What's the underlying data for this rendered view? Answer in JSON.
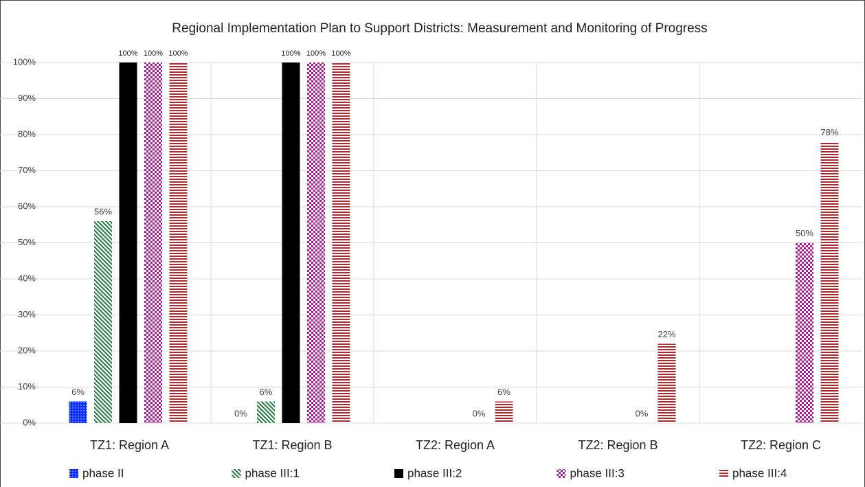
{
  "chart_data": {
    "type": "bar",
    "title": "Regional Implementation Plan to Support Districts: Measurement and Monitoring of Progress",
    "categories": [
      "TZ1: Region A",
      "TZ1: Region B",
      "TZ2: Region A",
      "TZ2: Region B",
      "TZ2: Region C"
    ],
    "series": [
      {
        "name": "phase II",
        "color": "#0a2cff",
        "pattern": "dots",
        "values": [
          6,
          0,
          null,
          null,
          null
        ],
        "value_labels": [
          "6%",
          "0%",
          null,
          null,
          null
        ]
      },
      {
        "name": "phase III:1",
        "color": "#1f7a3a",
        "pattern": "diagonal",
        "values": [
          56,
          6,
          null,
          null,
          null
        ],
        "value_labels": [
          "56%",
          "6%",
          null,
          null,
          null
        ]
      },
      {
        "name": "phase III:2",
        "color": "#000000",
        "pattern": "solid",
        "values": [
          100,
          100,
          null,
          null,
          null
        ],
        "value_labels": [
          "100%",
          "100%",
          null,
          null,
          null
        ]
      },
      {
        "name": "phase III:3",
        "color": "#b0179a",
        "pattern": "checker",
        "values": [
          100,
          100,
          0,
          0,
          50
        ],
        "value_labels": [
          "100%",
          "100%",
          "0%",
          "0%",
          "50%"
        ]
      },
      {
        "name": "phase III:4",
        "color": "#b3262b",
        "pattern": "horizontal",
        "values": [
          100,
          100,
          6,
          22,
          78
        ],
        "value_labels": [
          "100%",
          "100%",
          "6%",
          "22%",
          "78%"
        ]
      }
    ],
    "ylim": [
      0,
      100
    ],
    "yticks": [
      {
        "value": 0,
        "label": "0%"
      },
      {
        "value": 10,
        "label": "10%"
      },
      {
        "value": 20,
        "label": "20%"
      },
      {
        "value": 30,
        "label": "30%"
      },
      {
        "value": 40,
        "label": "40%"
      },
      {
        "value": 50,
        "label": "50%"
      },
      {
        "value": 60,
        "label": "60%"
      },
      {
        "value": 70,
        "label": "70%"
      },
      {
        "value": 80,
        "label": "80%"
      },
      {
        "value": 90,
        "label": "90%"
      },
      {
        "value": 100,
        "label": "100%"
      }
    ],
    "grid": true,
    "legend": "bottom"
  }
}
